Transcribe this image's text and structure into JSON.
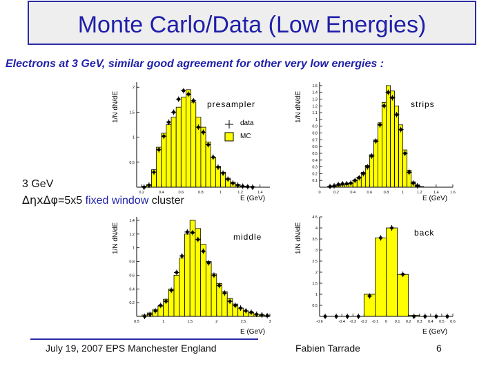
{
  "slide": {
    "title": "Monte Carlo/Data (Low Energies)",
    "subtitle": "Electrons at 3 GeV, similar good agreement for other very low energies :",
    "label_energy": "3 GeV",
    "label_window_symbols": "ΔηxΔφ",
    "label_window_size": "=5x5",
    "label_window_fixed": "fixed window",
    "label_window_cluster": "cluster",
    "footer_left": "July 19, 2007  EPS Manchester England",
    "footer_center": "Fabien Tarrade",
    "footer_right": "6"
  },
  "colors": {
    "title": "#1f1fa8",
    "hist_fill": "#ffff00",
    "markers": "#000000"
  },
  "chart_data": [
    {
      "type": "bar",
      "name": "presampler",
      "xlabel": "E (GeV)",
      "ylabel": "1/N dN/dE",
      "xlim": [
        0.15,
        1.5
      ],
      "ylim": [
        0,
        2.1
      ],
      "xticks": [
        "0.2",
        "0.4",
        "0.6",
        "0.8",
        "1",
        "1.2",
        "1.4"
      ],
      "xtick_values": [
        0.2,
        0.4,
        0.6,
        0.8,
        1,
        1.2,
        1.4
      ],
      "yticks": [
        "0.5",
        "1",
        "1.5",
        "2"
      ],
      "ytick_values": [
        0.5,
        1,
        1.5,
        2
      ],
      "bin_edges": [
        0.2,
        0.25,
        0.3,
        0.35,
        0.4,
        0.45,
        0.5,
        0.55,
        0.6,
        0.65,
        0.7,
        0.75,
        0.8,
        0.85,
        0.9,
        0.95,
        1.0,
        1.05,
        1.1,
        1.15,
        1.2,
        1.25,
        1.3,
        1.35,
        1.4
      ],
      "mc_values": [
        0.02,
        0.05,
        0.35,
        0.8,
        1.08,
        1.25,
        1.4,
        1.6,
        1.8,
        1.95,
        1.7,
        1.4,
        1.2,
        0.9,
        0.6,
        0.42,
        0.3,
        0.18,
        0.1,
        0.05,
        0.02,
        0.01,
        0.01,
        0.0
      ],
      "data_x": [
        0.225,
        0.275,
        0.325,
        0.375,
        0.425,
        0.475,
        0.525,
        0.575,
        0.625,
        0.675,
        0.725,
        0.775,
        0.825,
        0.875,
        0.925,
        0.975,
        1.025,
        1.075,
        1.125,
        1.175,
        1.225,
        1.275,
        1.325
      ],
      "data_values": [
        0.0,
        0.04,
        0.3,
        0.75,
        1.02,
        1.3,
        1.5,
        1.76,
        1.93,
        1.86,
        1.73,
        1.2,
        1.1,
        0.85,
        0.6,
        0.4,
        0.28,
        0.16,
        0.08,
        0.04,
        0.02,
        0.01,
        0.0
      ],
      "legend": [
        "data",
        "MC"
      ]
    },
    {
      "type": "bar",
      "name": "strips",
      "xlabel": "E (GeV)",
      "ylabel": "1/N dN/dE",
      "xlim": [
        0,
        1.6
      ],
      "ylim": [
        0,
        1.55
      ],
      "xticks": [
        "0",
        "0.2",
        "0.4",
        "0.6",
        "0.8",
        "1",
        "1.2",
        "1.4",
        "1.6"
      ],
      "xtick_values": [
        0,
        0.2,
        0.4,
        0.6,
        0.8,
        1,
        1.2,
        1.4,
        1.6
      ],
      "yticks": [
        "0.1",
        "0.2",
        "0.3",
        "0.4",
        "0.5",
        "0.6",
        "0.7",
        "0.8",
        "0.9",
        "1",
        "1.1",
        "1.2",
        "1.3",
        "1.4",
        "1.5"
      ],
      "ytick_values": [
        0.1,
        0.2,
        0.3,
        0.4,
        0.5,
        0.6,
        0.7,
        0.8,
        0.9,
        1,
        1.1,
        1.2,
        1.3,
        1.4,
        1.5
      ],
      "bin_edges": [
        0,
        0.05,
        0.1,
        0.15,
        0.2,
        0.25,
        0.3,
        0.35,
        0.4,
        0.45,
        0.5,
        0.55,
        0.6,
        0.65,
        0.7,
        0.75,
        0.8,
        0.85,
        0.9,
        0.95,
        1.0,
        1.05,
        1.1,
        1.15,
        1.2,
        1.25,
        1.3,
        1.35,
        1.4,
        1.45,
        1.5,
        1.55,
        1.6
      ],
      "mc_values": [
        0,
        0,
        0.01,
        0.01,
        0.02,
        0.03,
        0.04,
        0.06,
        0.1,
        0.15,
        0.22,
        0.32,
        0.48,
        0.7,
        0.95,
        1.25,
        1.5,
        1.42,
        1.2,
        0.92,
        0.55,
        0.25,
        0.08,
        0.03,
        0.01,
        0,
        0,
        0,
        0,
        0,
        0,
        0
      ],
      "data_x": [
        0.125,
        0.175,
        0.225,
        0.275,
        0.325,
        0.375,
        0.425,
        0.475,
        0.525,
        0.575,
        0.625,
        0.675,
        0.725,
        0.775,
        0.825,
        0.875,
        0.925,
        0.975,
        1.025,
        1.075,
        1.125,
        1.175
      ],
      "data_values": [
        0.01,
        0.02,
        0.04,
        0.05,
        0.05,
        0.06,
        0.1,
        0.14,
        0.2,
        0.3,
        0.46,
        0.68,
        0.92,
        1.2,
        1.4,
        1.32,
        1.07,
        0.85,
        0.5,
        0.22,
        0.06,
        0.02
      ]
    },
    {
      "type": "bar",
      "name": "middle",
      "xlabel": "E (GeV)",
      "ylabel": "1/N dN/dE",
      "xlim": [
        0.5,
        3.0
      ],
      "ylim": [
        0,
        1.45
      ],
      "xticks": [
        "0.5",
        "1",
        "1.5",
        "2",
        "2.5",
        "3"
      ],
      "xtick_values": [
        0.5,
        1,
        1.5,
        2,
        2.5,
        3
      ],
      "yticks": [
        "0.2",
        "0.4",
        "0.6",
        "0.8",
        "1",
        "1.2",
        "1.4"
      ],
      "ytick_values": [
        0.2,
        0.4,
        0.6,
        0.8,
        1,
        1.2,
        1.4
      ],
      "bin_edges": [
        0.6,
        0.7,
        0.8,
        0.9,
        1.0,
        1.1,
        1.2,
        1.3,
        1.4,
        1.5,
        1.6,
        1.7,
        1.8,
        1.9,
        2.0,
        2.1,
        2.2,
        2.3,
        2.4,
        2.5,
        2.6,
        2.7,
        2.8,
        2.9,
        3.0
      ],
      "mc_values": [
        0.02,
        0.05,
        0.1,
        0.15,
        0.25,
        0.4,
        0.6,
        0.85,
        1.2,
        1.4,
        1.28,
        1.05,
        0.8,
        0.62,
        0.48,
        0.36,
        0.26,
        0.18,
        0.12,
        0.08,
        0.05,
        0.03,
        0.02,
        0.01
      ],
      "data_x": [
        0.65,
        0.75,
        0.85,
        0.95,
        1.05,
        1.15,
        1.25,
        1.35,
        1.45,
        1.55,
        1.65,
        1.75,
        1.85,
        1.95,
        2.05,
        2.15,
        2.25,
        2.35,
        2.45,
        2.55,
        2.65,
        2.75,
        2.85,
        2.95
      ],
      "data_values": [
        0.0,
        0.03,
        0.08,
        0.16,
        0.22,
        0.38,
        0.64,
        0.88,
        1.23,
        1.22,
        1.12,
        0.95,
        0.78,
        0.6,
        0.45,
        0.34,
        0.22,
        0.16,
        0.12,
        0.08,
        0.06,
        0.03,
        0.02,
        0.01
      ]
    },
    {
      "type": "bar",
      "name": "back",
      "xlabel": "E (GeV)",
      "ylabel": "1/N dN/dE",
      "xlim": [
        -0.6,
        0.6
      ],
      "ylim": [
        0,
        4.5
      ],
      "xticks": [
        "-0.6",
        "-0.4",
        "-0.3",
        "-0.2",
        "-0.1",
        "0",
        "0.1",
        "0.2",
        "0.3",
        "0.4",
        "0.5",
        "0.6"
      ],
      "xtick_values": [
        -0.6,
        -0.4,
        -0.3,
        -0.2,
        -0.1,
        0,
        0.1,
        0.2,
        0.3,
        0.4,
        0.5,
        0.6
      ],
      "yticks": [
        "0.5",
        "1",
        "1.5",
        "2",
        "2.5",
        "3",
        "3.5",
        "4",
        "4.5"
      ],
      "ytick_values": [
        0.5,
        1,
        1.5,
        2,
        2.5,
        3,
        3.5,
        4,
        4.5
      ],
      "bin_edges": [
        -0.2,
        -0.1,
        0,
        0.1,
        0.2,
        0.3
      ],
      "mc_values": [
        1.0,
        3.55,
        4.0,
        1.9,
        0.05
      ],
      "data_x": [
        -0.55,
        -0.45,
        -0.35,
        -0.25,
        -0.15,
        -0.05,
        0.05,
        0.15,
        0.25,
        0.35,
        0.45,
        0.55
      ],
      "data_values": [
        0,
        0,
        0,
        0,
        0.92,
        3.55,
        4.0,
        1.9,
        0,
        0,
        0,
        0
      ]
    }
  ]
}
